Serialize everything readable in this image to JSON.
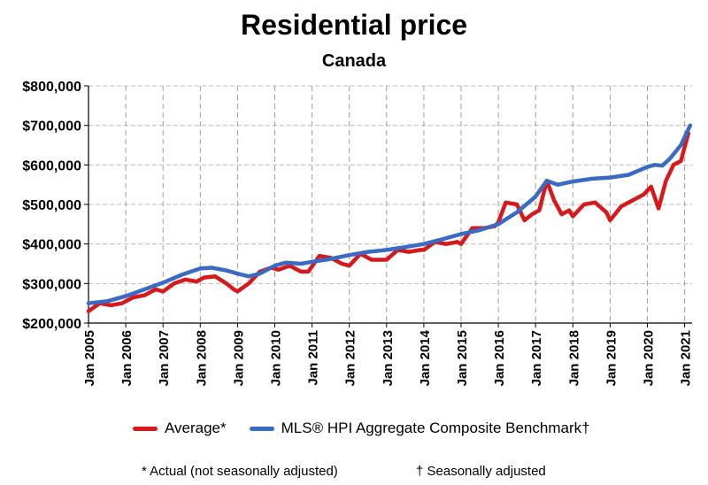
{
  "chart_data": {
    "type": "line",
    "title": "Residential price",
    "subtitle": "Canada",
    "ylim": [
      200000,
      800000
    ],
    "yticks": [
      "$200,000",
      "$300,000",
      "$400,000",
      "$500,000",
      "$600,000",
      "$700,000",
      "$800,000"
    ],
    "xlim": [
      2005,
      2021.2
    ],
    "xticks": [
      "Jan 2005",
      "Jan 2006",
      "Jan 2007",
      "Jan 2008",
      "Jan 2009",
      "Jan 2010",
      "Jan 2011",
      "Jan 2012",
      "Jan 2013",
      "Jan 2014",
      "Jan 2015",
      "Jan 2016",
      "Jan 2017",
      "Jan 2018",
      "Jan 2019",
      "Jan 2020",
      "Jan 2021"
    ],
    "grid": true,
    "legend_position": "bottom",
    "series": [
      {
        "name": "Average*",
        "color": "#d7191c",
        "points": [
          [
            2005.0,
            230000
          ],
          [
            2005.3,
            250000
          ],
          [
            2005.6,
            245000
          ],
          [
            2005.9,
            250000
          ],
          [
            2006.2,
            265000
          ],
          [
            2006.5,
            270000
          ],
          [
            2006.8,
            285000
          ],
          [
            2007.0,
            280000
          ],
          [
            2007.3,
            300000
          ],
          [
            2007.6,
            310000
          ],
          [
            2007.9,
            305000
          ],
          [
            2008.1,
            315000
          ],
          [
            2008.4,
            318000
          ],
          [
            2008.7,
            300000
          ],
          [
            2008.9,
            285000
          ],
          [
            2009.0,
            280000
          ],
          [
            2009.3,
            300000
          ],
          [
            2009.6,
            330000
          ],
          [
            2009.9,
            340000
          ],
          [
            2010.1,
            335000
          ],
          [
            2010.4,
            345000
          ],
          [
            2010.7,
            330000
          ],
          [
            2010.9,
            330000
          ],
          [
            2011.2,
            370000
          ],
          [
            2011.5,
            365000
          ],
          [
            2011.8,
            350000
          ],
          [
            2012.0,
            345000
          ],
          [
            2012.3,
            375000
          ],
          [
            2012.6,
            360000
          ],
          [
            2012.9,
            360000
          ],
          [
            2013.0,
            360000
          ],
          [
            2013.3,
            385000
          ],
          [
            2013.6,
            380000
          ],
          [
            2013.9,
            385000
          ],
          [
            2014.0,
            385000
          ],
          [
            2014.3,
            405000
          ],
          [
            2014.6,
            400000
          ],
          [
            2014.9,
            405000
          ],
          [
            2015.0,
            400000
          ],
          [
            2015.3,
            440000
          ],
          [
            2015.6,
            440000
          ],
          [
            2015.9,
            445000
          ],
          [
            2016.0,
            455000
          ],
          [
            2016.2,
            505000
          ],
          [
            2016.5,
            500000
          ],
          [
            2016.7,
            460000
          ],
          [
            2016.9,
            475000
          ],
          [
            2017.1,
            485000
          ],
          [
            2017.3,
            560000
          ],
          [
            2017.5,
            510000
          ],
          [
            2017.7,
            475000
          ],
          [
            2017.9,
            485000
          ],
          [
            2018.0,
            470000
          ],
          [
            2018.3,
            500000
          ],
          [
            2018.6,
            505000
          ],
          [
            2018.9,
            480000
          ],
          [
            2019.0,
            460000
          ],
          [
            2019.3,
            495000
          ],
          [
            2019.6,
            510000
          ],
          [
            2019.9,
            525000
          ],
          [
            2020.1,
            545000
          ],
          [
            2020.3,
            490000
          ],
          [
            2020.5,
            560000
          ],
          [
            2020.7,
            600000
          ],
          [
            2020.9,
            610000
          ],
          [
            2021.1,
            680000
          ]
        ]
      },
      {
        "name": "MLS® HPI Aggregate Composite Benchmark†",
        "color": "#3a6bc4",
        "points": [
          [
            2005.0,
            250000
          ],
          [
            2005.5,
            255000
          ],
          [
            2006.0,
            268000
          ],
          [
            2006.5,
            285000
          ],
          [
            2007.0,
            302000
          ],
          [
            2007.5,
            322000
          ],
          [
            2008.0,
            338000
          ],
          [
            2008.3,
            340000
          ],
          [
            2008.7,
            333000
          ],
          [
            2009.0,
            325000
          ],
          [
            2009.3,
            318000
          ],
          [
            2009.6,
            325000
          ],
          [
            2010.0,
            345000
          ],
          [
            2010.3,
            353000
          ],
          [
            2010.7,
            350000
          ],
          [
            2011.0,
            355000
          ],
          [
            2011.5,
            362000
          ],
          [
            2012.0,
            372000
          ],
          [
            2012.5,
            380000
          ],
          [
            2013.0,
            385000
          ],
          [
            2013.5,
            392000
          ],
          [
            2014.0,
            400000
          ],
          [
            2014.5,
            412000
          ],
          [
            2015.0,
            425000
          ],
          [
            2015.5,
            435000
          ],
          [
            2016.0,
            450000
          ],
          [
            2016.5,
            480000
          ],
          [
            2017.0,
            520000
          ],
          [
            2017.3,
            560000
          ],
          [
            2017.6,
            550000
          ],
          [
            2018.0,
            558000
          ],
          [
            2018.5,
            565000
          ],
          [
            2019.0,
            568000
          ],
          [
            2019.5,
            575000
          ],
          [
            2020.0,
            595000
          ],
          [
            2020.2,
            600000
          ],
          [
            2020.4,
            598000
          ],
          [
            2020.6,
            615000
          ],
          [
            2020.9,
            650000
          ],
          [
            2021.15,
            700000
          ]
        ]
      }
    ]
  },
  "legend": {
    "average_label": "Average*",
    "hpi_label": "MLS® HPI Aggregate Composite Benchmark†"
  },
  "footnotes": {
    "actual": "* Actual (not seasonally adjusted)",
    "seasonal": "† Seasonally adjusted"
  }
}
